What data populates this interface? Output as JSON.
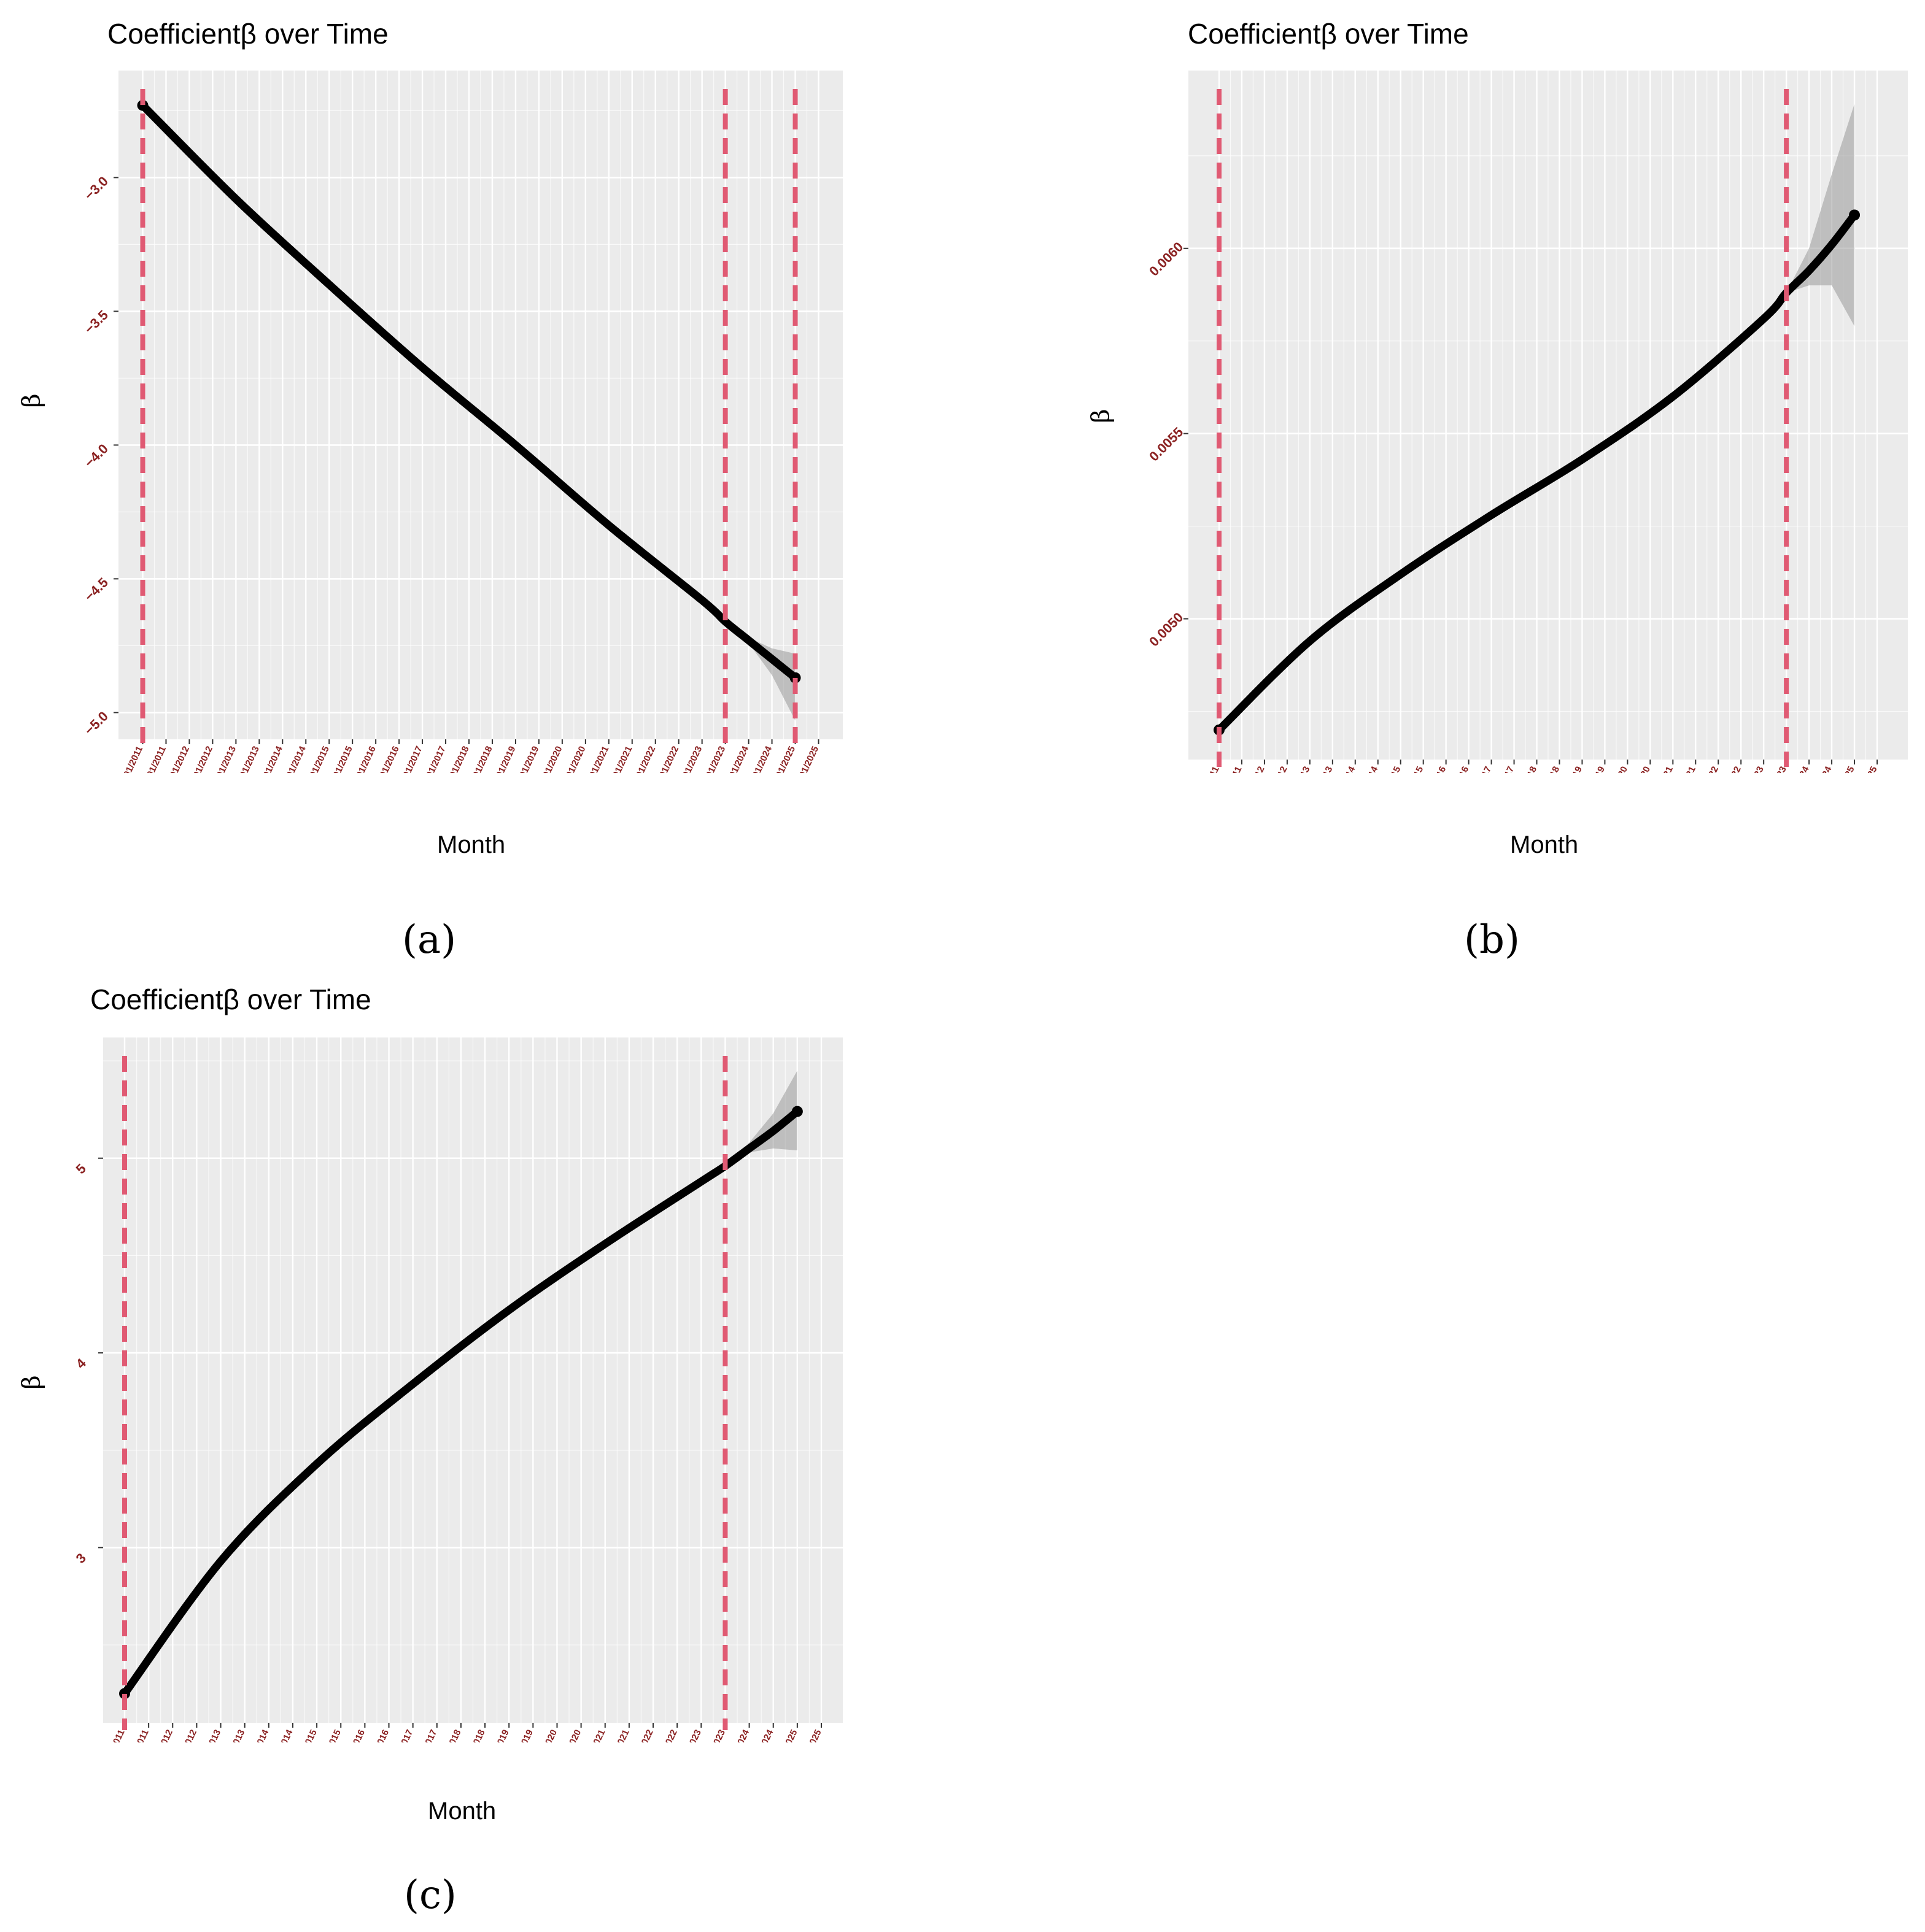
{
  "chart_data": [
    {
      "type": "line",
      "panel_label": "(a)",
      "title": "Coefficientβ over Time",
      "xlabel": "Month",
      "ylabel": "β",
      "x_tick_labels": [
        "03/01/2011",
        "09/01/2011",
        "03/01/2012",
        "09/01/2012",
        "03/01/2013",
        "09/01/2013",
        "03/01/2014",
        "09/01/2014",
        "03/01/2015",
        "09/01/2015",
        "03/01/2016",
        "09/01/2016",
        "03/01/2017",
        "09/01/2017",
        "03/01/2018",
        "09/01/2018",
        "03/01/2019",
        "09/01/2019",
        "03/01/2020",
        "09/01/2020",
        "03/01/2021",
        "09/01/2021",
        "03/01/2022",
        "09/01/2022",
        "03/01/2023",
        "09/01/2023",
        "03/01/2024",
        "09/01/2024",
        "03/01/2025",
        "09/01/2025"
      ],
      "y_ticks": [
        -5.0,
        -4.5,
        -4.0,
        -3.5,
        -3.0
      ],
      "y_tick_labels": [
        "−5.0",
        "−4.5",
        "−4.0",
        "−3.5",
        "−3.0"
      ],
      "ylim": [
        -5.1,
        -2.6
      ],
      "vlines": [
        "03/01/2011",
        "09/01/2023",
        "03/01/2025"
      ],
      "series": [
        {
          "x": [
            "03/01/2011",
            "03/01/2013",
            "03/01/2015",
            "03/01/2017",
            "03/01/2019",
            "03/01/2021",
            "03/01/2023",
            "09/01/2023",
            "03/01/2024",
            "09/01/2024",
            "03/01/2025"
          ],
          "values": [
            -2.73,
            -3.08,
            -3.4,
            -3.71,
            -4.0,
            -4.3,
            -4.58,
            -4.66,
            -4.73,
            -4.8,
            -4.87
          ]
        }
      ],
      "band": {
        "x": [
          "09/01/2023",
          "03/01/2024",
          "09/01/2024",
          "03/01/2025"
        ],
        "upper": [
          -4.66,
          -4.72,
          -4.76,
          -4.78
        ],
        "lower": [
          -4.66,
          -4.74,
          -4.86,
          -5.03
        ]
      },
      "grid": true,
      "colors": {
        "panel_bg": "#ebebeb",
        "grid": "#ffffff",
        "line": "#000000",
        "vline": "#e05a73",
        "tick": "#8b2222",
        "band": "#999999"
      }
    },
    {
      "type": "line",
      "panel_label": "(b)",
      "title": "Coefficientβ over Time",
      "xlabel": "Month",
      "ylabel": "β",
      "x_tick_labels": [
        "03/01/2011",
        "09/01/2011",
        "03/01/2012",
        "09/01/2012",
        "03/01/2013",
        "09/01/2013",
        "03/01/2014",
        "09/01/2014",
        "03/01/2015",
        "09/01/2015",
        "03/01/2016",
        "09/01/2016",
        "03/01/2017",
        "09/01/2017",
        "03/01/2018",
        "09/01/2018",
        "03/01/2019",
        "09/01/2019",
        "03/01/2020",
        "09/01/2020",
        "03/01/2021",
        "09/01/2021",
        "03/01/2022",
        "09/01/2022",
        "03/01/2023",
        "09/01/2023",
        "03/01/2024",
        "09/01/2024",
        "03/01/2025",
        "09/01/2025"
      ],
      "y_ticks": [
        0.005,
        0.0055,
        0.006
      ],
      "y_tick_labels": [
        "0.0050",
        "0.0055",
        "0.0060"
      ],
      "ylim": [
        0.00462,
        0.00648
      ],
      "vlines": [
        "03/01/2011",
        "09/01/2023"
      ],
      "series": [
        {
          "x": [
            "03/01/2011",
            "03/01/2013",
            "03/01/2015",
            "03/01/2017",
            "03/01/2019",
            "03/01/2021",
            "03/01/2023",
            "09/01/2023",
            "03/01/2024",
            "09/01/2024",
            "03/01/2025"
          ],
          "values": [
            0.0047,
            0.00494,
            0.00512,
            0.00528,
            0.00543,
            0.0056,
            0.00581,
            0.00588,
            0.00594,
            0.00601,
            0.00609
          ]
        }
      ],
      "band": {
        "x": [
          "09/01/2023",
          "03/01/2024",
          "09/01/2024",
          "03/01/2025"
        ],
        "upper": [
          0.00588,
          0.006,
          0.0062,
          0.00639
        ],
        "lower": [
          0.00588,
          0.0059,
          0.0059,
          0.00579
        ]
      },
      "grid": true,
      "colors": {
        "panel_bg": "#ebebeb",
        "grid": "#ffffff",
        "line": "#000000",
        "vline": "#e05a73",
        "tick": "#8b2222",
        "band": "#999999"
      }
    },
    {
      "type": "line",
      "panel_label": "(c)",
      "title": "Coefficientβ over Time",
      "xlabel": "Month",
      "ylabel": "β",
      "x_tick_labels": [
        "03/01/2011",
        "09/01/2011",
        "03/01/2012",
        "09/01/2012",
        "03/01/2013",
        "09/01/2013",
        "03/01/2014",
        "09/01/2014",
        "03/01/2015",
        "09/01/2015",
        "03/01/2016",
        "09/01/2016",
        "03/01/2017",
        "09/01/2017",
        "03/01/2018",
        "09/01/2018",
        "03/01/2019",
        "09/01/2019",
        "03/01/2020",
        "09/01/2020",
        "03/01/2021",
        "09/01/2021",
        "03/01/2022",
        "09/01/2022",
        "03/01/2023",
        "09/01/2023",
        "03/01/2024",
        "09/01/2024",
        "03/01/2025",
        "09/01/2025"
      ],
      "y_ticks": [
        3,
        4,
        5
      ],
      "y_tick_labels": [
        "3",
        "4",
        "5"
      ],
      "ylim": [
        2.1,
        5.62
      ],
      "vlines": [
        "03/01/2011",
        "09/01/2023"
      ],
      "series": [
        {
          "x": [
            "03/01/2011",
            "03/01/2013",
            "03/01/2015",
            "03/01/2017",
            "03/01/2019",
            "03/01/2021",
            "03/01/2023",
            "09/01/2023",
            "03/01/2024",
            "09/01/2024",
            "03/01/2025"
          ],
          "values": [
            2.25,
            2.93,
            3.43,
            3.84,
            4.22,
            4.56,
            4.88,
            4.96,
            5.05,
            5.14,
            5.24
          ]
        }
      ],
      "band": {
        "x": [
          "09/01/2023",
          "03/01/2024",
          "09/01/2024",
          "03/01/2025"
        ],
        "upper": [
          4.96,
          5.08,
          5.23,
          5.45
        ],
        "lower": [
          4.96,
          5.03,
          5.05,
          5.04
        ]
      },
      "grid": true,
      "colors": {
        "panel_bg": "#ebebeb",
        "grid": "#ffffff",
        "line": "#000000",
        "vline": "#e05a73",
        "tick": "#8b2222",
        "band": "#999999"
      }
    }
  ]
}
